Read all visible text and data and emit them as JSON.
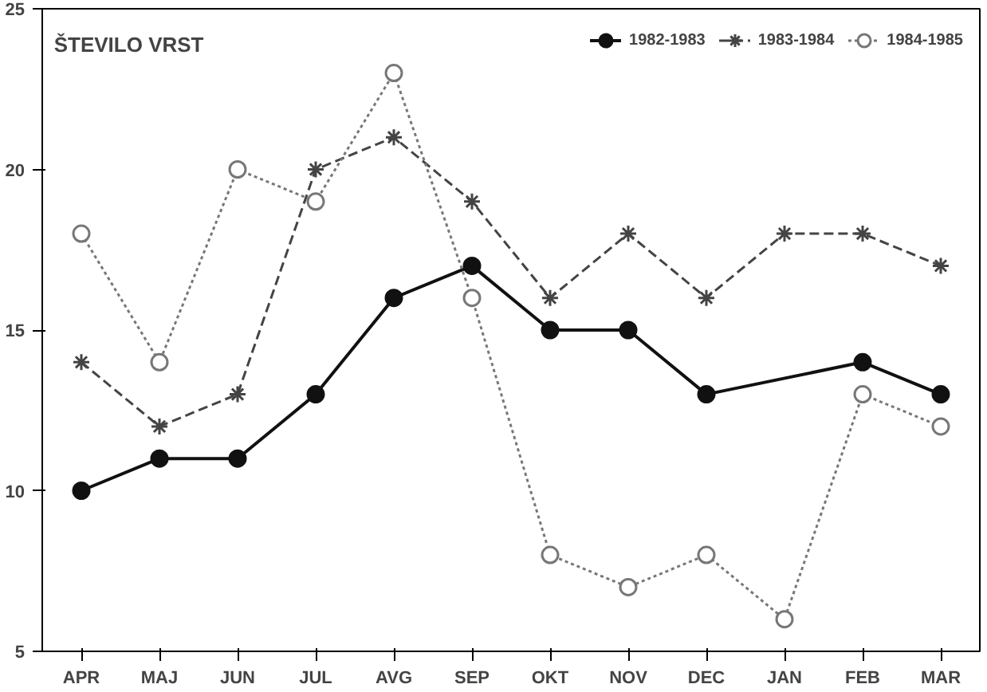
{
  "chart_data": {
    "type": "line",
    "title": "ŠTEVILO VRST",
    "categories": [
      "APR",
      "MAJ",
      "JUN",
      "JUL",
      "AVG",
      "SEP",
      "OKT",
      "NOV",
      "DEC",
      "JAN",
      "FEB",
      "MAR"
    ],
    "series": [
      {
        "name": "1982-1983",
        "color": "#111111",
        "line_style": "solid",
        "marker": "circle",
        "values": [
          10,
          11,
          11,
          13,
          16,
          17,
          15,
          15,
          13,
          null,
          14,
          13
        ]
      },
      {
        "name": "1983-1984",
        "color": "#444444",
        "line_style": "dashed",
        "marker": "cross",
        "values": [
          14,
          12,
          13,
          20,
          21,
          19,
          16,
          18,
          16,
          18,
          18,
          17
        ]
      },
      {
        "name": "1984-1985",
        "color": "#777777",
        "line_style": "dotted",
        "marker": "circle",
        "values": [
          18,
          14,
          20,
          19,
          23,
          16,
          8,
          7,
          8,
          6,
          13,
          12
        ]
      }
    ],
    "ylim": [
      5,
      25
    ],
    "yticks": [
      5,
      10,
      15,
      20,
      25
    ],
    "grid": false,
    "legend": "top right"
  }
}
